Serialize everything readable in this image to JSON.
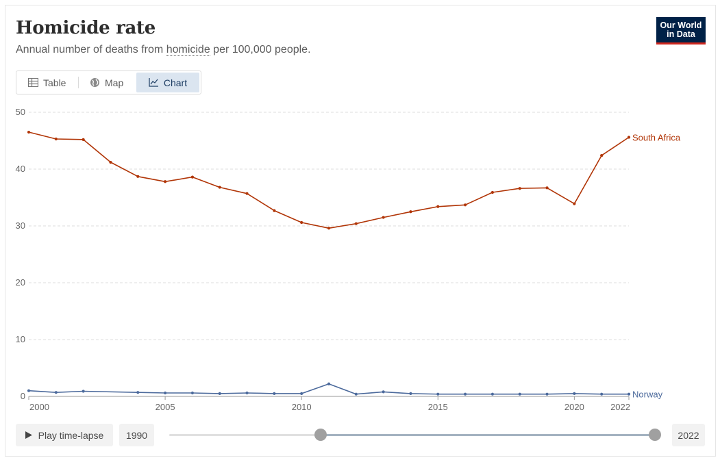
{
  "header": {
    "title": "Homicide rate",
    "subtitle_prefix": "Annual number of deaths from ",
    "subtitle_term": "homicide",
    "subtitle_suffix": " per 100,000 people.",
    "logo_line1": "Our World",
    "logo_line2": "in Data"
  },
  "tabs": [
    {
      "label": "Table",
      "icon": "table-icon",
      "active": false
    },
    {
      "label": "Map",
      "icon": "globe-icon",
      "active": false
    },
    {
      "label": "Chart",
      "icon": "line-chart-icon",
      "active": true
    }
  ],
  "controls": {
    "play_label": "Play time-lapse",
    "start_year": "1990",
    "end_year": "2022"
  },
  "colors": {
    "south_africa": "#b13507",
    "norway": "#4c6a9c",
    "grid": "#dddddd",
    "accent": "#002147"
  },
  "chart_data": {
    "type": "line",
    "title": "Homicide rate",
    "subtitle": "Annual number of deaths from homicide per 100,000 people.",
    "xlabel": "",
    "ylabel": "",
    "xlim": [
      2000,
      2022
    ],
    "ylim": [
      0,
      50
    ],
    "y_ticks": [
      0,
      10,
      20,
      30,
      40,
      50
    ],
    "x_ticks": [
      2000,
      2005,
      2010,
      2015,
      2020,
      2022
    ],
    "grid": "horizontal dashed",
    "legend": "line-end labels",
    "series": [
      {
        "name": "South Africa",
        "color": "#b13507",
        "points": [
          [
            2000,
            46.5
          ],
          [
            2001,
            45.3
          ],
          [
            2002,
            45.2
          ],
          [
            2003,
            41.2
          ],
          [
            2004,
            38.7
          ],
          [
            2005,
            37.8
          ],
          [
            2006,
            38.6
          ],
          [
            2007,
            36.8
          ],
          [
            2008,
            35.7
          ],
          [
            2009,
            32.7
          ],
          [
            2010,
            30.6
          ],
          [
            2011,
            29.6
          ],
          [
            2012,
            30.4
          ],
          [
            2013,
            31.5
          ],
          [
            2014,
            32.5
          ],
          [
            2015,
            33.4
          ],
          [
            2016,
            33.7
          ],
          [
            2017,
            35.9
          ],
          [
            2018,
            36.6
          ],
          [
            2019,
            36.7
          ],
          [
            2020,
            33.9
          ],
          [
            2021,
            42.4
          ],
          [
            2022,
            45.6
          ]
        ]
      },
      {
        "name": "Norway",
        "color": "#4c6a9c",
        "points": [
          [
            2000,
            1.0
          ],
          [
            2001,
            0.7
          ],
          [
            2002,
            0.9
          ],
          [
            2004,
            0.7
          ],
          [
            2005,
            0.6
          ],
          [
            2006,
            0.6
          ],
          [
            2007,
            0.5
          ],
          [
            2008,
            0.6
          ],
          [
            2009,
            0.5
          ],
          [
            2010,
            0.5
          ],
          [
            2011,
            2.2
          ],
          [
            2012,
            0.4
          ],
          [
            2013,
            0.8
          ],
          [
            2014,
            0.5
          ],
          [
            2015,
            0.4
          ],
          [
            2016,
            0.4
          ],
          [
            2017,
            0.4
          ],
          [
            2018,
            0.4
          ],
          [
            2019,
            0.4
          ],
          [
            2020,
            0.5
          ],
          [
            2021,
            0.4
          ],
          [
            2022,
            0.4
          ]
        ]
      }
    ]
  }
}
